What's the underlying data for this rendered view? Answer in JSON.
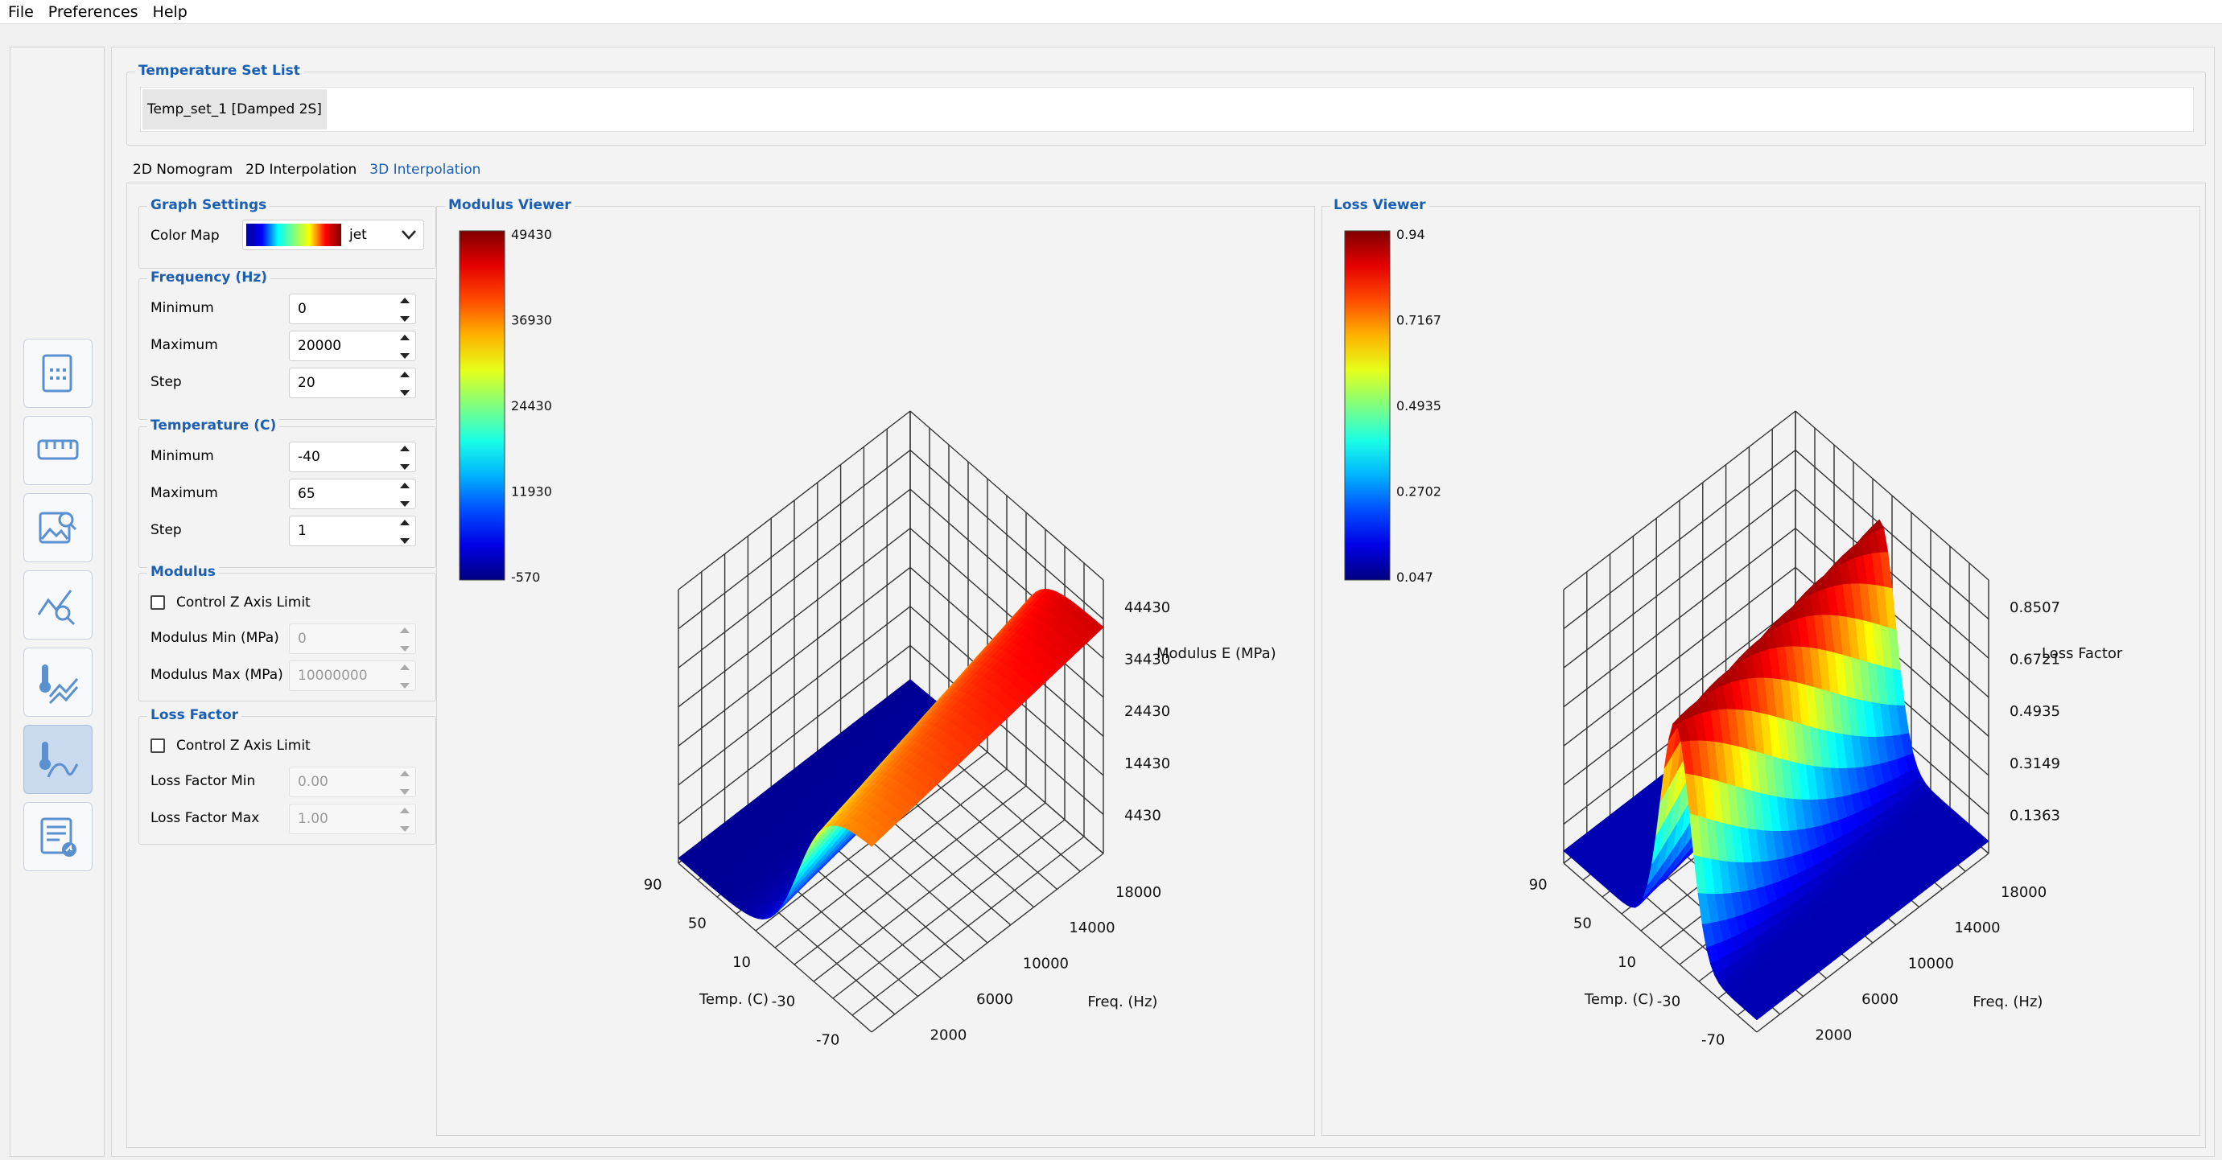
{
  "menu": [
    "File",
    "Preferences",
    "Help"
  ],
  "temperature_set_list": {
    "title": "Temperature Set List",
    "items": [
      "Temp_set_1 [Damped 2S]"
    ]
  },
  "tabs": [
    "2D Nomogram",
    "2D Interpolation",
    "3D Interpolation"
  ],
  "active_tab": "3D Interpolation",
  "graph_settings": {
    "title": "Graph Settings",
    "color_map_label": "Color Map",
    "color_map_value": "jet"
  },
  "frequency": {
    "title": "Frequency (Hz)",
    "min_label": "Minimum",
    "min_value": "0",
    "max_label": "Maximum",
    "max_value": "20000",
    "step_label": "Step",
    "step_value": "20"
  },
  "temperature": {
    "title": "Temperature (C)",
    "min_label": "Minimum",
    "min_value": "-40",
    "max_label": "Maximum",
    "max_value": "65",
    "step_label": "Step",
    "step_value": "1"
  },
  "modulus": {
    "title": "Modulus",
    "control_label": "Control Z Axis Limit",
    "min_label": "Modulus Min (MPa)",
    "min_value": "0",
    "max_label": "Modulus Max (MPa)",
    "max_value": "10000000"
  },
  "loss_factor": {
    "title": "Loss Factor",
    "control_label": "Control Z Axis Limit",
    "min_label": "Loss Factor Min",
    "min_value": "0.00",
    "max_label": "Loss Factor Max",
    "max_value": "1.00"
  },
  "colors": {
    "accent": "#1a5fb4",
    "active_rail": "#c9d9ee"
  },
  "rail_icons": [
    "material-card-icon",
    "ruler-icon",
    "image-search-icon",
    "chart-search-icon",
    "temperature-chart-icon",
    "temperature-curve-icon",
    "report-export-icon"
  ],
  "chart_data": [
    {
      "type": "surface3d",
      "title": "Modulus Viewer",
      "colormap": "jet",
      "colorbar_ticks": [
        "49430",
        "36930",
        "24430",
        "11930",
        "-570"
      ],
      "colorbar_range": [
        -570,
        49430
      ],
      "zlabel": "Modulus E (MPa)",
      "z_ticks": [
        "44430",
        "34430",
        "24430",
        "14430",
        "4430"
      ],
      "xlabel": "Freq. (Hz)",
      "x_ticks": [
        "18000",
        "14000",
        "10000",
        "6000",
        "2000"
      ],
      "ylabel": "Temp. (C)",
      "y_ticks": [
        "90",
        "50",
        "10",
        "-30",
        "-70"
      ]
    },
    {
      "type": "surface3d",
      "title": "Loss Viewer",
      "colormap": "jet",
      "colorbar_ticks": [
        "0.94",
        "0.7167",
        "0.4935",
        "0.2702",
        "0.047"
      ],
      "colorbar_range": [
        0.047,
        0.94
      ],
      "zlabel": "Loss Factor",
      "z_ticks": [
        "0.8507",
        "0.6721",
        "0.4935",
        "0.3149",
        "0.1363"
      ],
      "xlabel": "Freq. (Hz)",
      "x_ticks": [
        "18000",
        "14000",
        "10000",
        "6000",
        "2000"
      ],
      "ylabel": "Temp. (C)",
      "y_ticks": [
        "90",
        "50",
        "10",
        "-30",
        "-70"
      ]
    }
  ]
}
